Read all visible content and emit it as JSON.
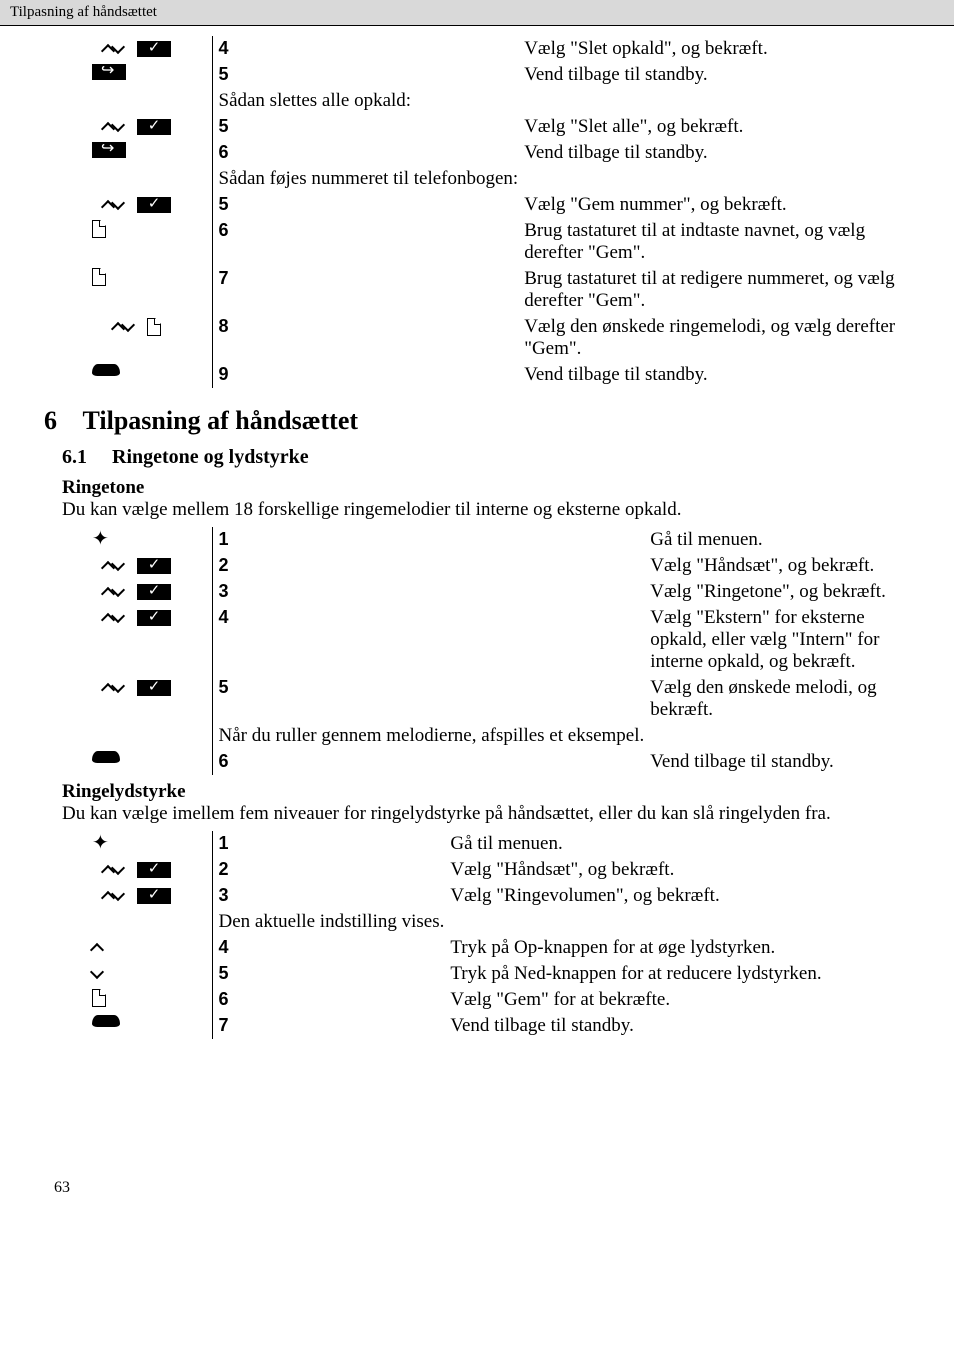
{
  "header": {
    "title": "Tilpasning af håndsættet"
  },
  "top_steps": [
    {
      "icons": [
        "updown",
        "check"
      ],
      "num": "4",
      "text": "Vælg \"Slet opkald\", og bekræft."
    },
    {
      "icons": [
        "back"
      ],
      "num": "5",
      "text": "Vend tilbage til standby."
    },
    {
      "note": "Sådan slettes alle opkald:"
    },
    {
      "icons": [
        "updown",
        "check"
      ],
      "num": "5",
      "text": "Vælg \"Slet alle\", og bekræft."
    },
    {
      "icons": [
        "back"
      ],
      "num": "6",
      "text": "Vend tilbage til standby."
    },
    {
      "note": "Sådan føjes nummeret til telefonbogen:"
    },
    {
      "icons": [
        "updown",
        "check"
      ],
      "num": "5",
      "text": "Vælg \"Gem nummer\", og bekræft."
    },
    {
      "icons": [
        "doc"
      ],
      "num": "6",
      "text": "Brug tastaturet til at indtaste navnet, og vælg derefter \"Gem\"."
    },
    {
      "icons": [
        "doc"
      ],
      "num": "7",
      "text": "Brug tastaturet til at redigere nummeret, og vælg derefter \"Gem\"."
    },
    {
      "icons": [
        "updown",
        "doc"
      ],
      "num": "8",
      "text": "Vælg den ønskede ringemelodi, og vælg derefter \"Gem\"."
    },
    {
      "icons": [
        "hang"
      ],
      "num": "9",
      "text": "Vend tilbage til standby."
    }
  ],
  "section": {
    "num": "6",
    "title": "Tilpasning af håndsættet"
  },
  "sub1": {
    "num": "6.1",
    "title": "Ringetone og lydstyrke",
    "subhead": "Ringetone",
    "intro": "Du kan vælge mellem 18 forskellige ringemelodier til interne og eksterne opkald.",
    "steps": [
      {
        "icons": [
          "menu"
        ],
        "num": "1",
        "text": "Gå til menuen."
      },
      {
        "icons": [
          "updown",
          "check"
        ],
        "num": "2",
        "text": "Vælg \"Håndsæt\", og bekræft."
      },
      {
        "icons": [
          "updown",
          "check"
        ],
        "num": "3",
        "text": "Vælg \"Ringetone\", og bekræft."
      },
      {
        "icons": [
          "updown",
          "check"
        ],
        "num": "4",
        "text": "Vælg \"Ekstern\" for eksterne opkald, eller vælg \"Intern\" for interne opkald, og bekræft."
      },
      {
        "icons": [
          "updown",
          "check"
        ],
        "num": "5",
        "text": "Vælg den ønskede melodi, og bekræft."
      },
      {
        "note": "Når du ruller gennem melodierne, afspilles et eksempel."
      },
      {
        "icons": [
          "hang"
        ],
        "num": "6",
        "text": "Vend tilbage til standby."
      }
    ]
  },
  "sub2": {
    "subhead": "Ringelydstyrke",
    "intro": "Du kan vælge imellem fem niveauer for ringelydstyrke på håndsættet, eller du kan slå ringelyden fra.",
    "steps": [
      {
        "icons": [
          "menu"
        ],
        "num": "1",
        "text": "Gå til menuen."
      },
      {
        "icons": [
          "updown",
          "check"
        ],
        "num": "2",
        "text": "Vælg \"Håndsæt\", og bekræft."
      },
      {
        "icons": [
          "updown",
          "check"
        ],
        "num": "3",
        "text": "Vælg \"Ringevolumen\", og bekræft."
      },
      {
        "note": "Den aktuelle indstilling vises."
      },
      {
        "icons": [
          "up"
        ],
        "num": "4",
        "text": "Tryk på Op-knappen for at øge lydstyrken."
      },
      {
        "icons": [
          "down"
        ],
        "num": "5",
        "text": "Tryk på Ned-knappen for at reducere lydstyrken."
      },
      {
        "icons": [
          "doc"
        ],
        "num": "6",
        "text": "Vælg \"Gem\" for at bekræfte."
      },
      {
        "icons": [
          "hang"
        ],
        "num": "7",
        "text": "Vend tilbage til standby."
      }
    ]
  },
  "page_number": "63"
}
